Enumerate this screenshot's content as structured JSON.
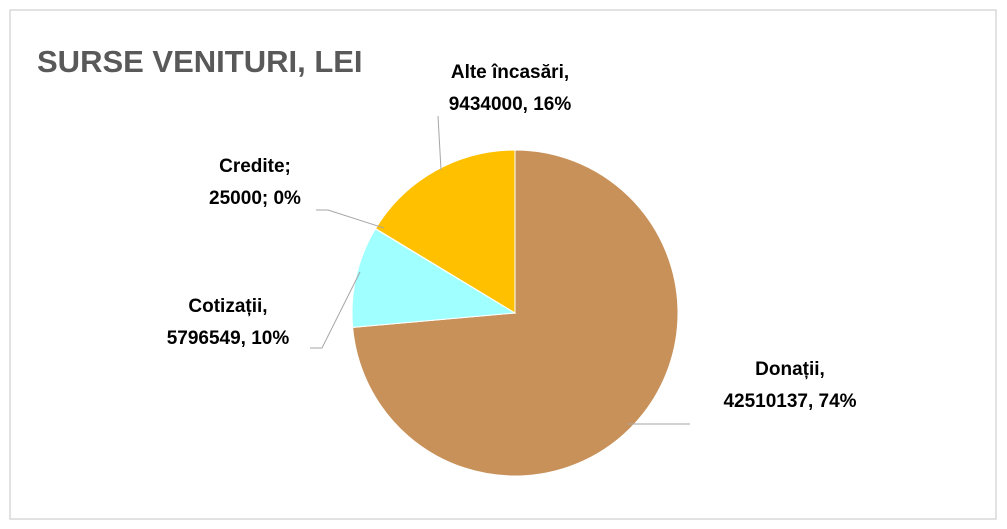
{
  "chart_data": {
    "type": "pie",
    "title": "SURSE VENITURI, LEI",
    "categories": [
      "Donații,",
      "Cotizații,",
      "Credite;",
      "Alte încasări,"
    ],
    "values": [
      42510137,
      5796549,
      25000,
      9434000
    ],
    "value_labels": [
      "42510137, 74%",
      "5796549, 10%",
      "25000; 0%",
      "9434000, 16%"
    ],
    "colors": [
      "#c8915a",
      "#a0ffff",
      "#7f7f7f",
      "#ffc000"
    ]
  }
}
